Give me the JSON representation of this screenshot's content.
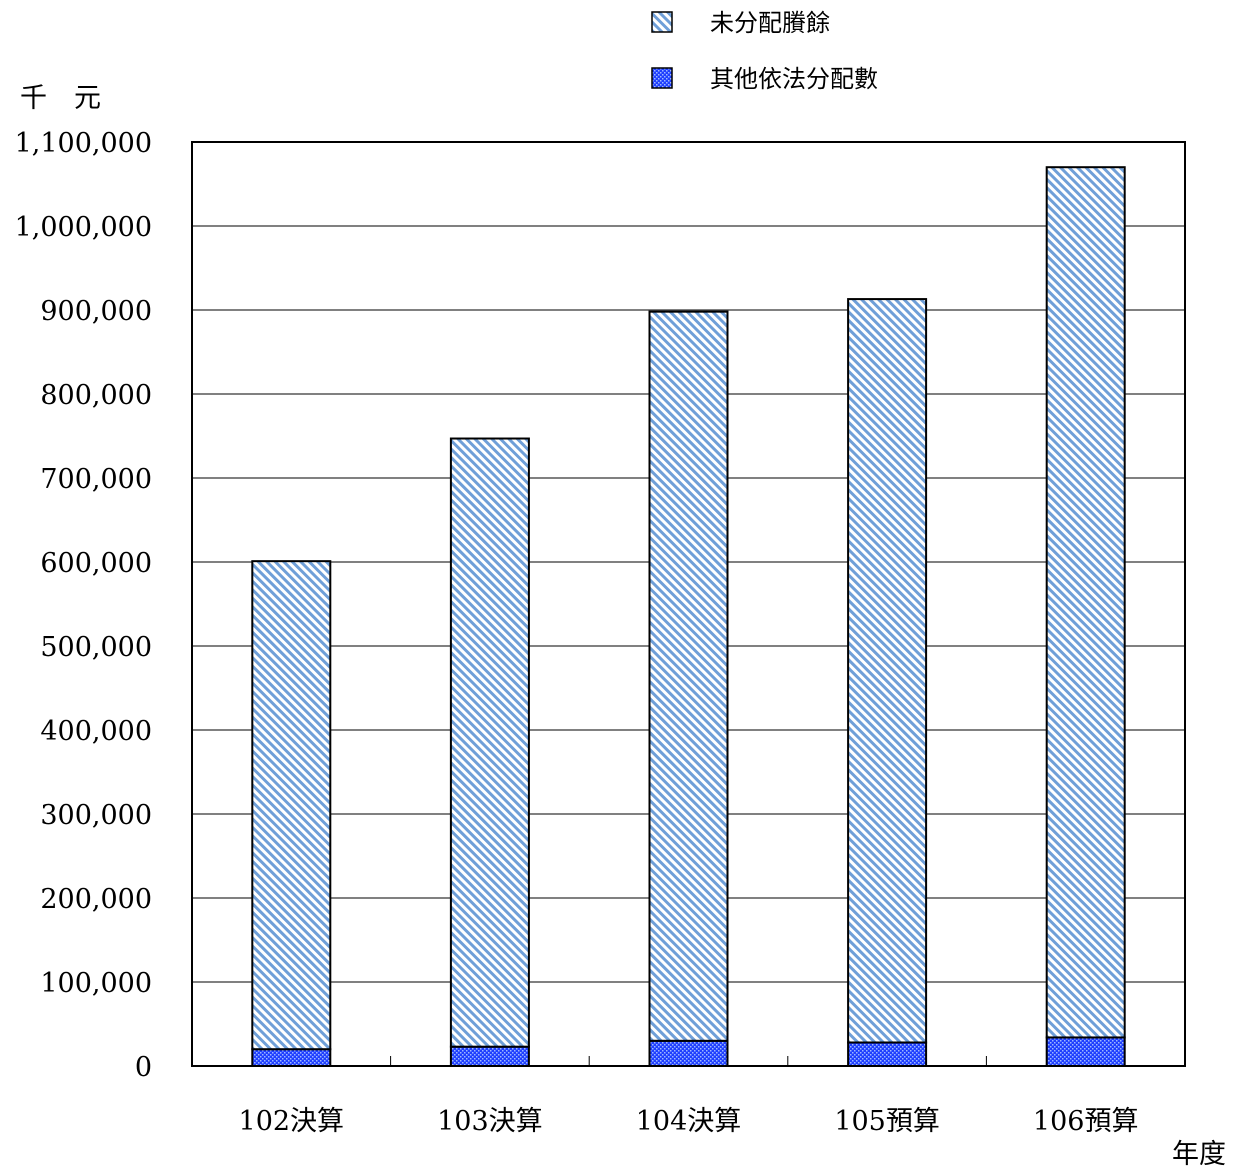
{
  "chart_data": {
    "type": "bar",
    "stacked": true,
    "ylabel": "千　元",
    "xlabel": "年度",
    "ylim": [
      0,
      1100000
    ],
    "yticks": [
      0,
      100000,
      200000,
      300000,
      400000,
      500000,
      600000,
      700000,
      800000,
      900000,
      1000000,
      1100000
    ],
    "ytick_labels": [
      "0",
      "100,000",
      "200,000",
      "300,000",
      "400,000",
      "500,000",
      "600,000",
      "700,000",
      "800,000",
      "900,000",
      "1,000,000",
      "1,100,000"
    ],
    "grid": true,
    "legend_position": "top-right",
    "categories": [
      "102決算",
      "103決算",
      "104決算",
      "105預算",
      "106預算"
    ],
    "series": [
      {
        "name": "其他依法分配數",
        "values": [
          20000,
          23000,
          30000,
          28000,
          34000
        ],
        "color": "#1f3fff",
        "pattern": "dots"
      },
      {
        "name": "未分配賸餘",
        "values": [
          581000,
          724000,
          868000,
          885000,
          1036000
        ],
        "color": "#6f9fd8",
        "pattern": "diagonal-hatch"
      }
    ]
  }
}
